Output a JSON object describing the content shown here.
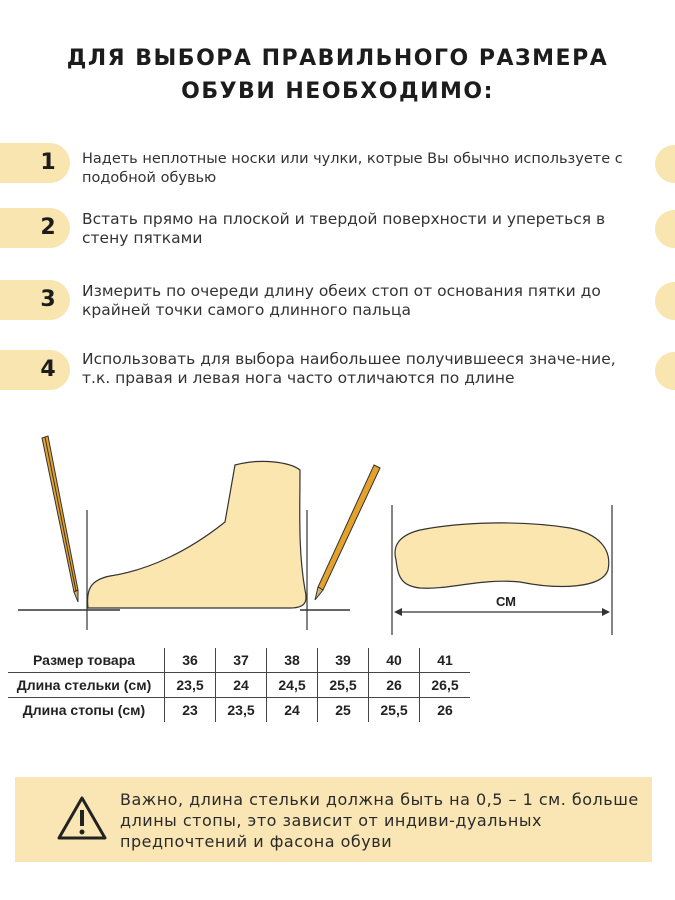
{
  "title": {
    "line1_pre": "ДЛЯ ВЫБОРА ",
    "line1_bold": "ПРАВИЛЬНОГО",
    "line1_post": " РАЗМЕРА",
    "line2": "ОБУВИ НЕОБХОДИМО:"
  },
  "steps": [
    {
      "num": "1",
      "text": "Надеть неплотные носки или чулки, котрые Вы обычно используете с подобной обувью"
    },
    {
      "num": "2",
      "text": "Встать прямо на плоской и твердой поверхности и упереться в стену пятками"
    },
    {
      "num": "3",
      "text": "Измерить по очереди длину обеих стоп от основания пятки до крайней точки самого длинного пальца"
    },
    {
      "num": "4",
      "text": "Использовать для выбора наибольшее получившееся значе-ние, т.к. правая и левая нога часто отличаются по длине"
    }
  ],
  "illustration": {
    "unit_label": "СМ"
  },
  "size_table": {
    "rows": [
      {
        "label": "Размер товара",
        "values": [
          "36",
          "37",
          "38",
          "39",
          "40",
          "41"
        ]
      },
      {
        "label": "Длина стельки (см)",
        "values": [
          "23,5",
          "24",
          "24,5",
          "25,5",
          "26",
          "26,5"
        ]
      },
      {
        "label": "Длина стопы (см)",
        "values": [
          "23",
          "23,5",
          "24",
          "25",
          "25,5",
          "26"
        ]
      }
    ]
  },
  "warning": {
    "icon": "warning-triangle-icon",
    "text": "Важно, длина стельки должна быть на 0,5 – 1 см. больше длины стопы, это зависит от индиви-дуальных предпочтений и фасона обуви"
  },
  "colors": {
    "accent": "#f9e5b0",
    "foot_fill": "#fbe6b0"
  }
}
